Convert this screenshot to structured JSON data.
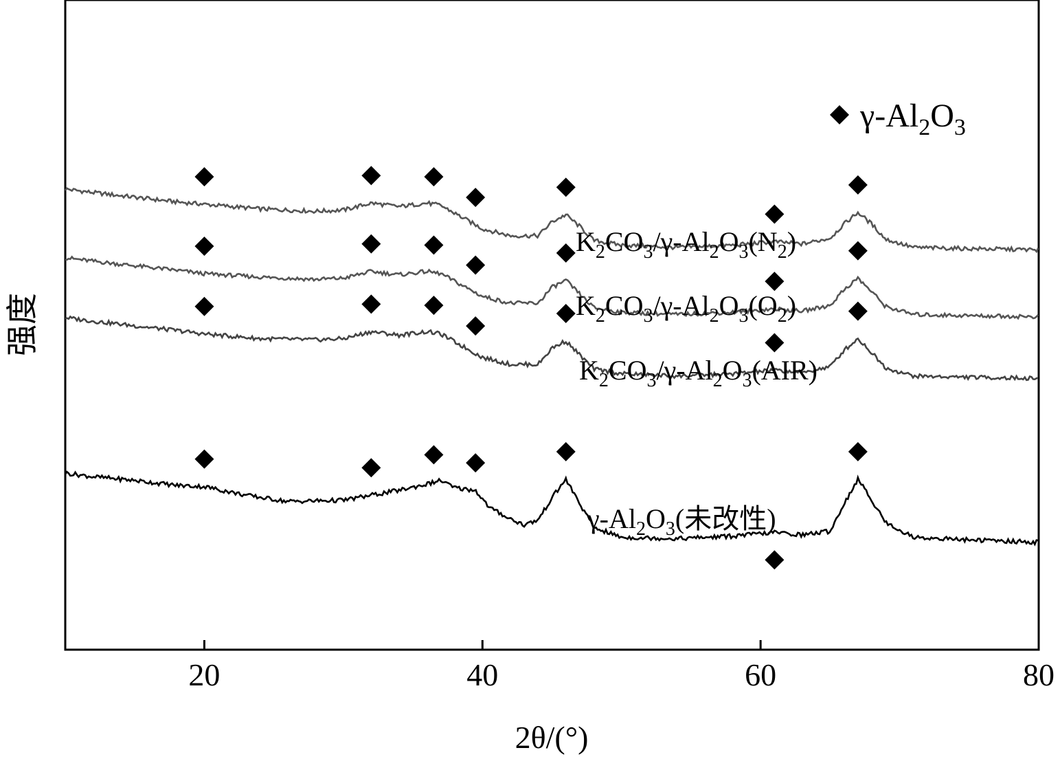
{
  "chart_data": {
    "type": "line",
    "xlabel": "2θ/(°)",
    "ylabel": "强度",
    "xlim": [
      10,
      80
    ],
    "xticks": [
      20,
      40,
      60,
      80
    ],
    "y_ticks_shown": false,
    "legend": {
      "marker": "diamond",
      "label": "γ-Al2O3",
      "placement": "top-right"
    },
    "peak_marker_x": [
      20,
      32,
      36.5,
      39.5,
      46,
      61,
      67
    ],
    "series": [
      {
        "name": "K2CO3/γ-Al2O3(N2)",
        "label_parts": [
          "K",
          "2",
          "CO",
          "3",
          "/γ-Al",
          "2",
          "O",
          "3",
          "(N",
          "2",
          ")"
        ],
        "color": "#555555",
        "level": 0.98,
        "points": [
          [
            10,
            1.0
          ],
          [
            12,
            0.97
          ],
          [
            15,
            0.93
          ],
          [
            18,
            0.89
          ],
          [
            20,
            0.87
          ],
          [
            24,
            0.83
          ],
          [
            28,
            0.81
          ],
          [
            30,
            0.82
          ],
          [
            32,
            0.88
          ],
          [
            34,
            0.85
          ],
          [
            36,
            0.88
          ],
          [
            37,
            0.86
          ],
          [
            38.5,
            0.76
          ],
          [
            40,
            0.66
          ],
          [
            42,
            0.6
          ],
          [
            44,
            0.6
          ],
          [
            45,
            0.72
          ],
          [
            46,
            0.78
          ],
          [
            47,
            0.68
          ],
          [
            48,
            0.56
          ],
          [
            50,
            0.52
          ],
          [
            54,
            0.5
          ],
          [
            58,
            0.52
          ],
          [
            61,
            0.55
          ],
          [
            63,
            0.53
          ],
          [
            65,
            0.58
          ],
          [
            66,
            0.7
          ],
          [
            67,
            0.8
          ],
          [
            68,
            0.7
          ],
          [
            69,
            0.57
          ],
          [
            71,
            0.5
          ],
          [
            75,
            0.49
          ],
          [
            80,
            0.48
          ]
        ]
      },
      {
        "name": "K2CO3/γ-Al2O3(O2)",
        "label_parts": [
          "K",
          "2",
          "CO",
          "3",
          "/γ-Al",
          "2",
          "O",
          "3",
          "(O",
          "2",
          ")"
        ],
        "color": "#555555",
        "level": 0.74,
        "points": [
          [
            10,
            1.0
          ],
          [
            12,
            0.97
          ],
          [
            15,
            0.93
          ],
          [
            18,
            0.89
          ],
          [
            20,
            0.86
          ],
          [
            24,
            0.83
          ],
          [
            28,
            0.81
          ],
          [
            30,
            0.82
          ],
          [
            32,
            0.88
          ],
          [
            34,
            0.85
          ],
          [
            36,
            0.88
          ],
          [
            37,
            0.86
          ],
          [
            38.5,
            0.76
          ],
          [
            40,
            0.66
          ],
          [
            42,
            0.6
          ],
          [
            44,
            0.6
          ],
          [
            45,
            0.74
          ],
          [
            46,
            0.8
          ],
          [
            47,
            0.68
          ],
          [
            48,
            0.56
          ],
          [
            50,
            0.52
          ],
          [
            54,
            0.5
          ],
          [
            58,
            0.52
          ],
          [
            61,
            0.55
          ],
          [
            63,
            0.53
          ],
          [
            65,
            0.58
          ],
          [
            66,
            0.72
          ],
          [
            67,
            0.82
          ],
          [
            68,
            0.7
          ],
          [
            69,
            0.57
          ],
          [
            71,
            0.5
          ],
          [
            75,
            0.49
          ],
          [
            80,
            0.48
          ]
        ]
      },
      {
        "name": "K2CO3/γ-Al2O3(AIR)",
        "label_parts": [
          "K",
          "2",
          "CO",
          "3",
          "/γ-Al",
          "2",
          "O",
          "3",
          "(AIR)"
        ],
        "color": "#444444",
        "level": 0.5,
        "points": [
          [
            10,
            1.0
          ],
          [
            12,
            0.97
          ],
          [
            15,
            0.93
          ],
          [
            18,
            0.89
          ],
          [
            20,
            0.86
          ],
          [
            24,
            0.82
          ],
          [
            28,
            0.81
          ],
          [
            30,
            0.82
          ],
          [
            32,
            0.88
          ],
          [
            34,
            0.85
          ],
          [
            36,
            0.88
          ],
          [
            37,
            0.86
          ],
          [
            38.5,
            0.76
          ],
          [
            40,
            0.66
          ],
          [
            42,
            0.6
          ],
          [
            44,
            0.6
          ],
          [
            45,
            0.74
          ],
          [
            46,
            0.8
          ],
          [
            47,
            0.68
          ],
          [
            48,
            0.56
          ],
          [
            50,
            0.52
          ],
          [
            54,
            0.5
          ],
          [
            58,
            0.52
          ],
          [
            61,
            0.55
          ],
          [
            63,
            0.53
          ],
          [
            65,
            0.58
          ],
          [
            66,
            0.72
          ],
          [
            67,
            0.82
          ],
          [
            68,
            0.7
          ],
          [
            69,
            0.57
          ],
          [
            71,
            0.5
          ],
          [
            75,
            0.49
          ],
          [
            80,
            0.48
          ]
        ]
      },
      {
        "name": "γ-Al2O3(未改性)",
        "label_parts": [
          "γ-Al",
          "2",
          "O",
          "3",
          "(未改性)"
        ],
        "color": "#000000",
        "level": 0.2,
        "points": [
          [
            10,
            1.0
          ],
          [
            12,
            0.97
          ],
          [
            15,
            0.94
          ],
          [
            18,
            0.9
          ],
          [
            20,
            0.89
          ],
          [
            23,
            0.82
          ],
          [
            26,
            0.77
          ],
          [
            30,
            0.78
          ],
          [
            32,
            0.82
          ],
          [
            34,
            0.86
          ],
          [
            36,
            0.91
          ],
          [
            37,
            0.94
          ],
          [
            38,
            0.88
          ],
          [
            39.5,
            0.86
          ],
          [
            40.5,
            0.72
          ],
          [
            42,
            0.63
          ],
          [
            43,
            0.58
          ],
          [
            44,
            0.62
          ],
          [
            45,
            0.8
          ],
          [
            46,
            0.95
          ],
          [
            47,
            0.75
          ],
          [
            48,
            0.56
          ],
          [
            50,
            0.48
          ],
          [
            54,
            0.47
          ],
          [
            58,
            0.49
          ],
          [
            61,
            0.52
          ],
          [
            63,
            0.5
          ],
          [
            65,
            0.53
          ],
          [
            66,
            0.75
          ],
          [
            67,
            0.95
          ],
          [
            68,
            0.78
          ],
          [
            69,
            0.6
          ],
          [
            71,
            0.48
          ],
          [
            75,
            0.46
          ],
          [
            80,
            0.44
          ]
        ]
      }
    ]
  }
}
